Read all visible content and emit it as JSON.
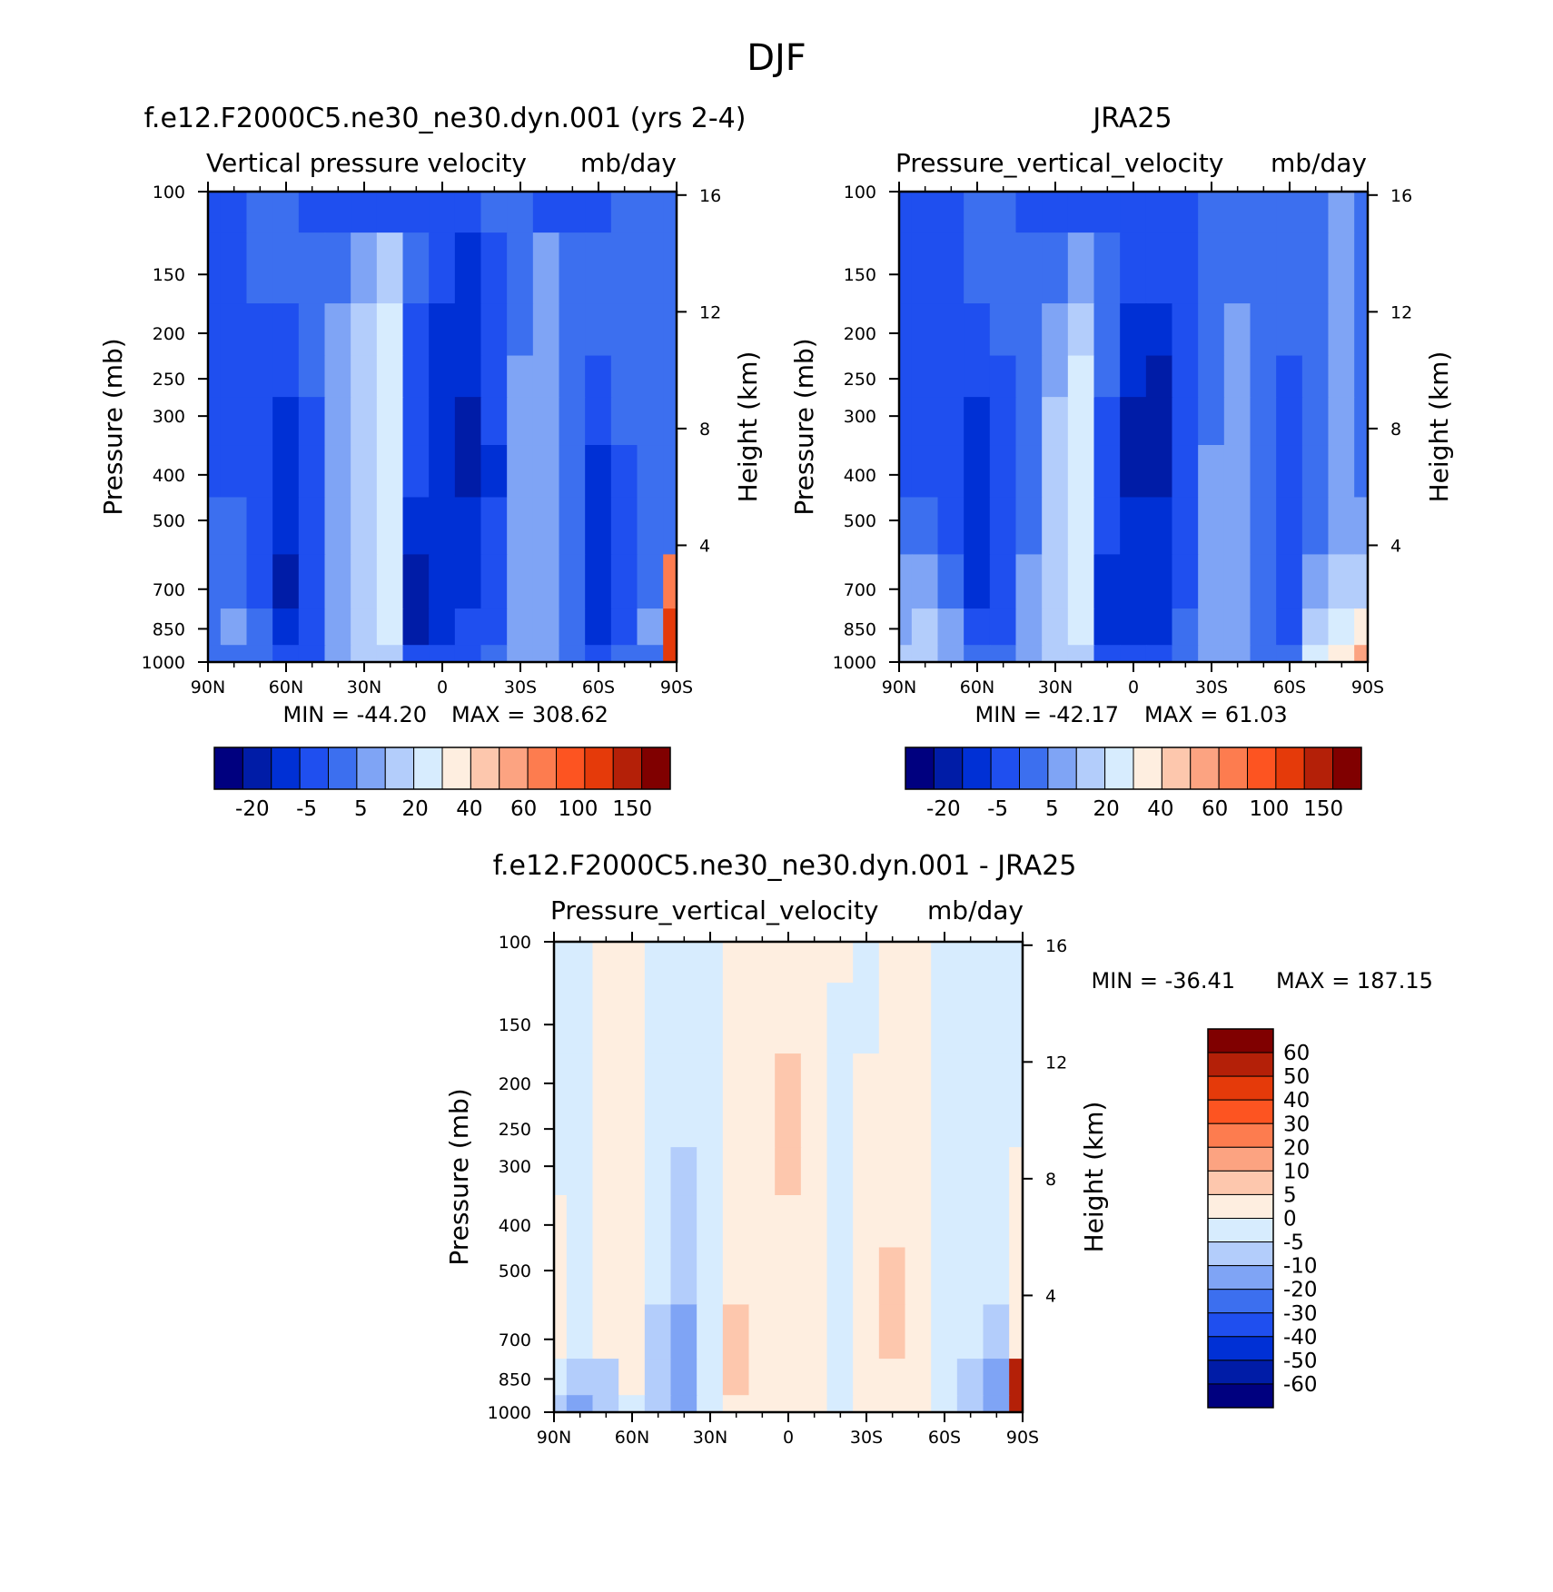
{
  "figure": {
    "title": "DJF"
  },
  "palettes": {
    "full": [
      "#00007f",
      "#001ca7",
      "#0030d5",
      "#1f4fef",
      "#3c6fef",
      "#7fa4f5",
      "#b3cdfb",
      "#d7ecfe",
      "#feeee0",
      "#fdc7ad",
      "#fca381",
      "#fd7c4f",
      "#fd5421",
      "#e53a0a",
      "#b42008",
      "#800000"
    ],
    "diff": [
      "#00007f",
      "#001ca7",
      "#0030d5",
      "#1f4fef",
      "#3c6fef",
      "#7fa4f5",
      "#b3cdfb",
      "#d7ecfe",
      "#feeee0",
      "#fdc7ad",
      "#fca381",
      "#fd7c4f",
      "#fd5421",
      "#e53a0a",
      "#b42008",
      "#800000"
    ]
  },
  "chart_data": [
    {
      "id": "model",
      "type": "heatmap",
      "title": "f.e12.F2000C5.ne30_ne30.dyn.001 (yrs 2-4)",
      "variable": "Vertical pressure velocity",
      "units": "mb/day",
      "ylabel": "Pressure (mb)",
      "y2label": "Height (km)",
      "x_ticks": [
        "90N",
        "60N",
        "30N",
        "0",
        "30S",
        "60S",
        "90S"
      ],
      "x_range": [
        90,
        -90
      ],
      "y_ticks": [
        "100",
        "150",
        "200",
        "250",
        "300",
        "400",
        "500",
        "700",
        "850",
        "1000"
      ],
      "y_range": [
        100,
        1000
      ],
      "y2_ticks": [
        "16",
        "12",
        "8",
        "4"
      ],
      "min_label": "MIN = -44.20",
      "max_label": "MAX = 308.62",
      "colorbar_labels": [
        "-20",
        "-5",
        "5",
        "20",
        "40",
        "60",
        "100",
        "150"
      ],
      "grid_lat": [
        90,
        80,
        70,
        60,
        50,
        40,
        30,
        20,
        10,
        0,
        -10,
        -20,
        -30,
        -40,
        -50,
        -60,
        -70,
        -80,
        -90
      ],
      "grid_p": [
        100,
        150,
        200,
        250,
        300,
        400,
        500,
        700,
        850,
        1000
      ],
      "grid_levels": [
        [
          3,
          3,
          4,
          4,
          3,
          3,
          3,
          3,
          3,
          3,
          3,
          4,
          4,
          3,
          3,
          3,
          4,
          4,
          4
        ],
        [
          3,
          3,
          4,
          4,
          4,
          4,
          5,
          6,
          4,
          3,
          2,
          3,
          4,
          5,
          4,
          4,
          4,
          4,
          4
        ],
        [
          3,
          3,
          3,
          3,
          4,
          5,
          6,
          7,
          3,
          2,
          2,
          3,
          4,
          5,
          4,
          4,
          4,
          4,
          4
        ],
        [
          3,
          3,
          3,
          3,
          4,
          5,
          6,
          7,
          3,
          2,
          2,
          3,
          5,
          5,
          4,
          3,
          4,
          4,
          4
        ],
        [
          3,
          3,
          3,
          2,
          3,
          5,
          6,
          7,
          3,
          2,
          1,
          3,
          5,
          5,
          4,
          3,
          4,
          4,
          4
        ],
        [
          3,
          3,
          3,
          2,
          3,
          5,
          6,
          7,
          3,
          2,
          1,
          2,
          5,
          5,
          4,
          2,
          3,
          4,
          4
        ],
        [
          4,
          4,
          3,
          2,
          3,
          5,
          6,
          7,
          2,
          2,
          2,
          3,
          5,
          5,
          4,
          2,
          3,
          4,
          4
        ],
        [
          4,
          4,
          3,
          1,
          3,
          5,
          6,
          7,
          1,
          2,
          2,
          3,
          5,
          5,
          4,
          2,
          3,
          4,
          11
        ],
        [
          4,
          5,
          4,
          2,
          3,
          5,
          6,
          7,
          1,
          2,
          3,
          3,
          5,
          5,
          4,
          2,
          3,
          5,
          13
        ],
        [
          4,
          4,
          4,
          3,
          3,
          5,
          6,
          6,
          3,
          3,
          3,
          4,
          5,
          5,
          4,
          3,
          4,
          4,
          13
        ]
      ]
    },
    {
      "id": "obs",
      "type": "heatmap",
      "title": "JRA25",
      "variable": "Pressure_vertical_velocity",
      "units": "mb/day",
      "ylabel": "Pressure (mb)",
      "y2label": "Height (km)",
      "x_ticks": [
        "90N",
        "60N",
        "30N",
        "0",
        "30S",
        "60S",
        "90S"
      ],
      "x_range": [
        90,
        -90
      ],
      "y_ticks": [
        "100",
        "150",
        "200",
        "250",
        "300",
        "400",
        "500",
        "700",
        "850",
        "1000"
      ],
      "y_range": [
        100,
        1000
      ],
      "y2_ticks": [
        "16",
        "12",
        "8",
        "4"
      ],
      "min_label": "MIN = -42.17",
      "max_label": "MAX = 61.03",
      "colorbar_labels": [
        "-20",
        "-5",
        "5",
        "20",
        "40",
        "60",
        "100",
        "150"
      ],
      "grid_lat": [
        90,
        80,
        70,
        60,
        50,
        40,
        30,
        20,
        10,
        0,
        -10,
        -20,
        -30,
        -40,
        -50,
        -60,
        -70,
        -80,
        -90
      ],
      "grid_p": [
        100,
        150,
        200,
        250,
        300,
        400,
        500,
        700,
        850,
        1000
      ],
      "grid_levels": [
        [
          3,
          3,
          3,
          4,
          4,
          3,
          3,
          3,
          3,
          3,
          3,
          3,
          4,
          4,
          4,
          4,
          4,
          5,
          4
        ],
        [
          3,
          3,
          3,
          4,
          4,
          4,
          4,
          5,
          4,
          3,
          3,
          3,
          4,
          4,
          4,
          4,
          4,
          5,
          4
        ],
        [
          3,
          3,
          3,
          3,
          4,
          4,
          5,
          6,
          4,
          2,
          2,
          3,
          4,
          5,
          4,
          4,
          4,
          5,
          4
        ],
        [
          3,
          3,
          3,
          3,
          3,
          4,
          5,
          7,
          4,
          2,
          1,
          3,
          4,
          5,
          4,
          3,
          4,
          5,
          4
        ],
        [
          3,
          3,
          3,
          2,
          3,
          4,
          6,
          7,
          3,
          1,
          1,
          3,
          4,
          5,
          4,
          3,
          4,
          5,
          4
        ],
        [
          3,
          3,
          3,
          2,
          3,
          4,
          6,
          7,
          3,
          1,
          1,
          3,
          5,
          5,
          4,
          3,
          4,
          5,
          4
        ],
        [
          4,
          4,
          3,
          2,
          3,
          4,
          6,
          7,
          3,
          2,
          2,
          3,
          5,
          5,
          4,
          3,
          4,
          5,
          5
        ],
        [
          5,
          5,
          4,
          2,
          3,
          5,
          6,
          7,
          2,
          2,
          2,
          3,
          5,
          5,
          4,
          3,
          5,
          6,
          6
        ],
        [
          5,
          6,
          5,
          3,
          3,
          5,
          6,
          7,
          2,
          2,
          2,
          4,
          5,
          5,
          4,
          3,
          6,
          7,
          8
        ],
        [
          6,
          6,
          5,
          4,
          4,
          5,
          6,
          6,
          3,
          3,
          3,
          4,
          5,
          5,
          4,
          4,
          7,
          8,
          10
        ]
      ]
    },
    {
      "id": "diff",
      "type": "heatmap",
      "title": "f.e12.F2000C5.ne30_ne30.dyn.001 - JRA25",
      "variable": "Pressure_vertical_velocity",
      "units": "mb/day",
      "ylabel": "Pressure (mb)",
      "y2label": "Height (km)",
      "x_ticks": [
        "90N",
        "60N",
        "30N",
        "0",
        "30S",
        "60S",
        "90S"
      ],
      "x_range": [
        90,
        -90
      ],
      "y_ticks": [
        "100",
        "150",
        "200",
        "250",
        "300",
        "400",
        "500",
        "700",
        "850",
        "1000"
      ],
      "y_range": [
        100,
        1000
      ],
      "y2_ticks": [
        "16",
        "12",
        "8",
        "4"
      ],
      "min_label": "MIN = -36.41",
      "max_label": "MAX = 187.15",
      "colorbar_labels": [
        "60",
        "50",
        "40",
        "30",
        "20",
        "10",
        "5",
        "0",
        "-5",
        "-10",
        "-20",
        "-30",
        "-40",
        "-50",
        "-60"
      ],
      "grid_lat": [
        90,
        80,
        70,
        60,
        50,
        40,
        30,
        20,
        10,
        0,
        -10,
        -20,
        -30,
        -40,
        -50,
        -60,
        -70,
        -80,
        -90
      ],
      "grid_p": [
        100,
        150,
        200,
        250,
        300,
        400,
        500,
        700,
        850,
        1000
      ],
      "grid_levels": [
        [
          7,
          7,
          8,
          8,
          7,
          7,
          7,
          8,
          8,
          8,
          8,
          8,
          7,
          8,
          8,
          7,
          7,
          7,
          7
        ],
        [
          7,
          7,
          8,
          8,
          7,
          7,
          7,
          8,
          8,
          8,
          8,
          7,
          7,
          8,
          8,
          7,
          7,
          7,
          7
        ],
        [
          7,
          7,
          8,
          8,
          7,
          7,
          7,
          8,
          8,
          9,
          8,
          7,
          8,
          8,
          8,
          7,
          7,
          7,
          7
        ],
        [
          7,
          7,
          8,
          8,
          7,
          7,
          7,
          8,
          8,
          9,
          8,
          7,
          8,
          8,
          8,
          7,
          7,
          7,
          7
        ],
        [
          7,
          7,
          8,
          8,
          7,
          6,
          7,
          8,
          8,
          9,
          8,
          7,
          8,
          8,
          8,
          7,
          7,
          7,
          8
        ],
        [
          8,
          7,
          8,
          8,
          7,
          6,
          7,
          8,
          8,
          8,
          8,
          7,
          8,
          8,
          8,
          7,
          7,
          7,
          8
        ],
        [
          8,
          7,
          8,
          8,
          7,
          6,
          7,
          8,
          8,
          8,
          8,
          7,
          8,
          9,
          8,
          7,
          7,
          7,
          8
        ],
        [
          8,
          7,
          8,
          8,
          6,
          5,
          7,
          9,
          8,
          8,
          8,
          7,
          8,
          9,
          8,
          7,
          7,
          6,
          8
        ],
        [
          7,
          6,
          6,
          8,
          6,
          5,
          7,
          9,
          8,
          8,
          8,
          7,
          8,
          8,
          8,
          7,
          6,
          5,
          14
        ],
        [
          6,
          5,
          6,
          7,
          6,
          5,
          7,
          8,
          8,
          8,
          8,
          7,
          8,
          8,
          8,
          7,
          6,
          5,
          14
        ]
      ]
    }
  ]
}
